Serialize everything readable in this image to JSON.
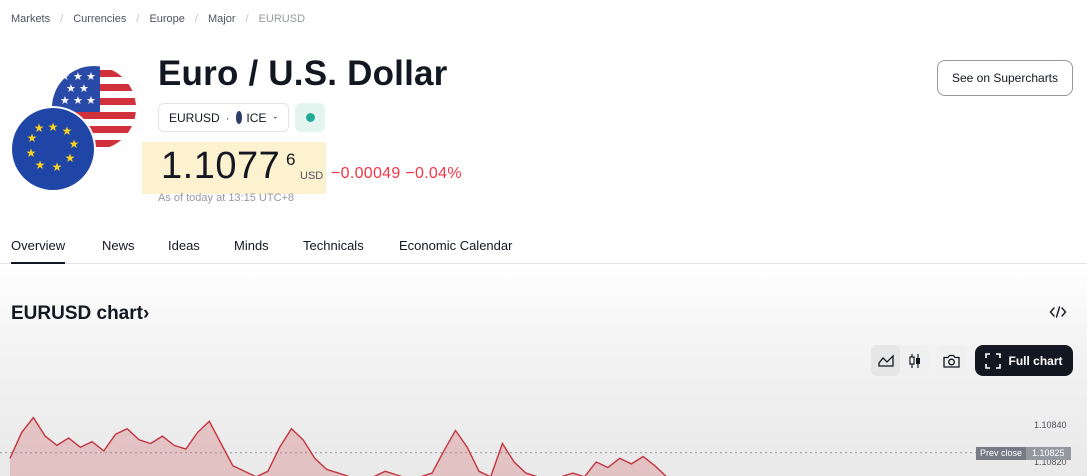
{
  "breadcrumb": [
    "Markets",
    "Currencies",
    "Europe",
    "Major",
    "EURUSD"
  ],
  "header": {
    "title": "Euro / U.S. Dollar",
    "symbol": "EURUSD",
    "exchange": "ICE",
    "supercharts_label": "See on Supercharts"
  },
  "quote": {
    "price_main": "1.1077",
    "price_sup": "6",
    "currency": "USD",
    "change_abs": "−0.00049",
    "change_pct": "−0.04%",
    "as_of": "As of today at 13:15 UTC+8",
    "market_status_color": "#22ab94",
    "change_color": "#f23645"
  },
  "tabs": [
    {
      "label": "Overview",
      "active": true
    },
    {
      "label": "News"
    },
    {
      "label": "Ideas"
    },
    {
      "label": "Minds"
    },
    {
      "label": "Technicals"
    },
    {
      "label": "Economic Calendar"
    }
  ],
  "chart_section": {
    "title": "EURUSD chart",
    "title_suffix": "›",
    "full_chart_label": "Full chart",
    "prev_close_label": "Prev close",
    "prev_close_value": "1.10825",
    "axis_labels": [
      "1.10840",
      "1.10820"
    ],
    "line_color": "#c1353f",
    "icons": [
      "embed-code-icon",
      "area-chart-icon",
      "candles-icon",
      "camera-icon",
      "fullscreen-icon"
    ]
  },
  "chart_data": {
    "type": "area",
    "y_ticks": [
      1.1084,
      1.1082
    ],
    "prev_close": 1.10825,
    "values": [
      1.10822,
      1.10836,
      1.10844,
      1.10834,
      1.10829,
      1.10833,
      1.10828,
      1.10831,
      1.10826,
      1.10835,
      1.10838,
      1.10832,
      1.1083,
      1.10834,
      1.10829,
      1.10827,
      1.10836,
      1.10842,
      1.1083,
      1.10818,
      1.10815,
      1.10812,
      1.10815,
      1.10828,
      1.10838,
      1.10832,
      1.10822,
      1.10816,
      1.10814,
      1.10812,
      1.1081,
      1.10812,
      1.10815,
      1.10813,
      1.10811,
      1.10812,
      1.10814,
      1.10826,
      1.10837,
      1.10828,
      1.10815,
      1.10812,
      1.1083,
      1.1082,
      1.10814,
      1.10812,
      1.1081,
      1.10812,
      1.10814,
      1.10812,
      1.1082,
      1.10817,
      1.10822,
      1.10819,
      1.10823,
      1.10818,
      1.10812,
      1.10811,
      1.10812
    ]
  }
}
